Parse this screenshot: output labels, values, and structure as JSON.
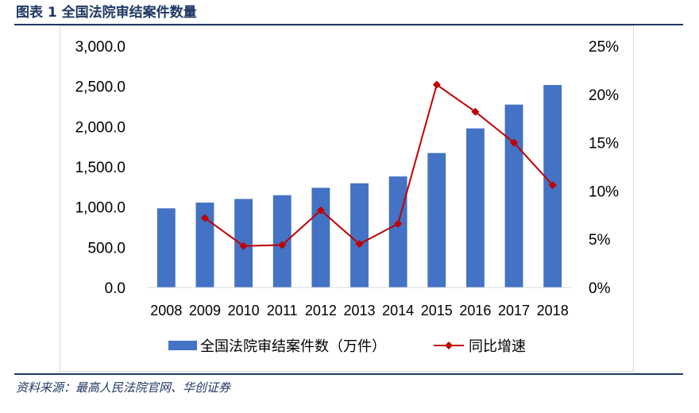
{
  "figure": {
    "title": "图表 1    全国法院审结案件数量",
    "source": "资料来源：最高人民法院官网、华创证券"
  },
  "chart_data": {
    "type": "bar",
    "title": "",
    "categories": [
      "2008",
      "2009",
      "2010",
      "2011",
      "2012",
      "2013",
      "2014",
      "2015",
      "2016",
      "2017",
      "2018"
    ],
    "series": [
      {
        "name": "全国法院审结案件数（万件）",
        "type": "bar",
        "axis": "left",
        "color": "#4472c4",
        "values": [
          984,
          1055,
          1100,
          1147,
          1239,
          1295,
          1380,
          1671,
          1977,
          2273,
          2516
        ]
      },
      {
        "name": "同比增速",
        "type": "line",
        "axis": "right",
        "color": "#c00000",
        "values": [
          null,
          7.2,
          4.3,
          4.4,
          8.0,
          4.5,
          6.6,
          21.0,
          18.2,
          15.0,
          10.6
        ]
      }
    ],
    "y_left": {
      "range": [
        0,
        3000
      ],
      "ticks": [
        0,
        500,
        1000,
        1500,
        2000,
        2500,
        3000
      ],
      "tick_labels": [
        "0.0",
        "500.0",
        "1,000.0",
        "1,500.0",
        "2,000.0",
        "2,500.0",
        "3,000.0"
      ]
    },
    "y_right": {
      "range": [
        0,
        25
      ],
      "ticks": [
        0,
        5,
        10,
        15,
        20,
        25
      ],
      "tick_labels": [
        "0%",
        "5%",
        "10%",
        "15%",
        "20%",
        "25%"
      ]
    },
    "xlabel": "",
    "ylabel": "",
    "grid": false,
    "legend_position": "bottom",
    "colors": {
      "bar": "#4472c4",
      "line": "#c00000",
      "axis": "#d9d9d9",
      "title": "#1f3864"
    }
  }
}
